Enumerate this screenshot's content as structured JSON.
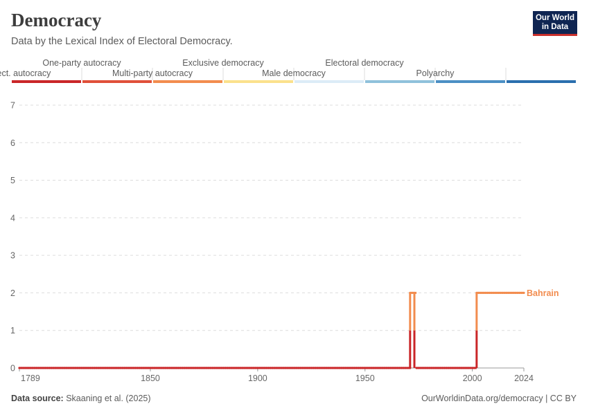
{
  "header": {
    "title": "Democracy",
    "subtitle": "Data by the Lexical Index of Electoral Democracy."
  },
  "logo": {
    "line1": "Our World",
    "line2": "in Data"
  },
  "footer": {
    "source_label": "Data source:",
    "source_text": "Skaaning et al. (2025)",
    "credit": "OurWorldinData.org/democracy | CC BY"
  },
  "chart_data": {
    "type": "line",
    "title": "Democracy",
    "subtitle": "Data by the Lexical Index of Electoral Democracy.",
    "xlim": [
      1789,
      2024
    ],
    "ylim": [
      0,
      7
    ],
    "x_ticks": [
      1789,
      1850,
      1900,
      1950,
      2000,
      2024
    ],
    "y_ticks": [
      0,
      1,
      2,
      3,
      4,
      5,
      6,
      7
    ],
    "grid": true,
    "color_legend": [
      {
        "label": "Non-elect. autocracy",
        "color": "#ca2628"
      },
      {
        "label": "One-party autocracy",
        "color": "#e0503a"
      },
      {
        "label": "Multi-party autocracy",
        "color": "#f28c4e"
      },
      {
        "label": "Exclusive democracy",
        "color": "#fbe18c"
      },
      {
        "label": "Male democracy",
        "color": "#dcecf7"
      },
      {
        "label": "Electoral democracy",
        "color": "#8fc1db"
      },
      {
        "label": "Polyarchy",
        "color": "#4b8fc4"
      },
      {
        "label": "",
        "color": "#2a6fae"
      }
    ],
    "series": [
      {
        "name": "Bahrain",
        "segments": [
          {
            "x": [
              1789,
              1971
            ],
            "y": [
              0,
              0
            ]
          },
          {
            "x": [
              1971,
              1973
            ],
            "y": [
              2,
              2
            ]
          },
          {
            "x": [
              1974,
              2001
            ],
            "y": [
              0,
              0
            ]
          },
          {
            "x": [
              2002,
              2024
            ],
            "y": [
              2,
              2
            ]
          }
        ]
      }
    ]
  }
}
